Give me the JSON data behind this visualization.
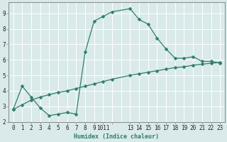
{
  "xlabel": "Humidex (Indice chaleur)",
  "bg_color": "#daeaea",
  "grid_color": "#ffffff",
  "line_color": "#2e7d6e",
  "xlim": [
    -0.5,
    23.5
  ],
  "ylim": [
    2.0,
    9.7
  ],
  "xtick_positions": [
    0,
    1,
    2,
    3,
    4,
    5,
    6,
    7,
    8,
    9,
    10,
    11,
    13,
    14,
    15,
    16,
    17,
    18,
    19,
    20,
    21,
    22,
    23
  ],
  "xtick_labels": [
    "0",
    "1",
    "2",
    "3",
    "4",
    "5",
    "6",
    "7",
    "8",
    "9",
    "1011",
    "",
    "13",
    "14",
    "15",
    "16",
    "17",
    "18",
    "19",
    "20",
    "21",
    "22",
    "23"
  ],
  "ytick_positions": [
    2,
    3,
    4,
    5,
    6,
    7,
    8,
    9
  ],
  "ytick_labels": [
    "2",
    "3",
    "4",
    "5",
    "6",
    "7",
    "8",
    "9"
  ],
  "series1_x": [
    0,
    1,
    2,
    3,
    4,
    5,
    6,
    7,
    8,
    9,
    10,
    11,
    13,
    14,
    15,
    16,
    17,
    18,
    19,
    20,
    21,
    22,
    23
  ],
  "series1_y": [
    2.8,
    4.3,
    3.6,
    2.9,
    2.4,
    2.5,
    2.6,
    2.5,
    6.5,
    8.5,
    8.8,
    9.1,
    9.3,
    8.6,
    8.3,
    7.4,
    6.7,
    6.1,
    6.1,
    6.2,
    5.9,
    5.9,
    5.8
  ],
  "series2_x": [
    0,
    1,
    2,
    3,
    4,
    5,
    6,
    7,
    8,
    9,
    10,
    11,
    13,
    14,
    15,
    16,
    17,
    18,
    19,
    20,
    21,
    22,
    23
  ],
  "series2_y": [
    2.8,
    3.1,
    3.4,
    3.6,
    3.75,
    3.9,
    4.0,
    4.15,
    4.3,
    4.45,
    4.6,
    4.75,
    5.0,
    5.1,
    5.2,
    5.3,
    5.4,
    5.5,
    5.55,
    5.65,
    5.72,
    5.78,
    5.83
  ],
  "markersize": 2.5,
  "linewidth": 0.9,
  "xlabel_fontsize": 6,
  "tick_fontsize": 5.5
}
